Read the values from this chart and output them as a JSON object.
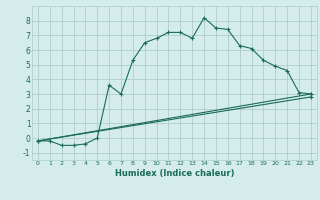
{
  "xlabel": "Humidex (Indice chaleur)",
  "background_color": "#d4ecec",
  "grid_color": "#b0cccc",
  "line_color": "#1a6b5a",
  "xlim": [
    -0.5,
    23.5
  ],
  "ylim": [
    -1.5,
    9.0
  ],
  "yticks": [
    -1,
    0,
    1,
    2,
    3,
    4,
    5,
    6,
    7,
    8
  ],
  "xticks": [
    0,
    1,
    2,
    3,
    4,
    5,
    6,
    7,
    8,
    9,
    10,
    11,
    12,
    13,
    14,
    15,
    16,
    17,
    18,
    19,
    20,
    21,
    22,
    23
  ],
  "series1_x": [
    0,
    1,
    2,
    3,
    4,
    5,
    6,
    7,
    8,
    9,
    10,
    11,
    12,
    13,
    14,
    15,
    16,
    17,
    18,
    19,
    20,
    21,
    22,
    23
  ],
  "series1_y": [
    -0.2,
    -0.2,
    -0.5,
    -0.5,
    -0.4,
    0.0,
    3.6,
    3.0,
    5.3,
    6.5,
    6.8,
    7.2,
    7.2,
    6.8,
    8.2,
    7.5,
    7.4,
    6.3,
    6.1,
    5.3,
    4.9,
    4.6,
    3.1,
    3.0
  ],
  "series2_x": [
    0,
    23
  ],
  "series2_y": [
    -0.2,
    3.0
  ],
  "series3_x": [
    0,
    23
  ],
  "series3_y": [
    -0.2,
    2.8
  ],
  "marker": "+"
}
